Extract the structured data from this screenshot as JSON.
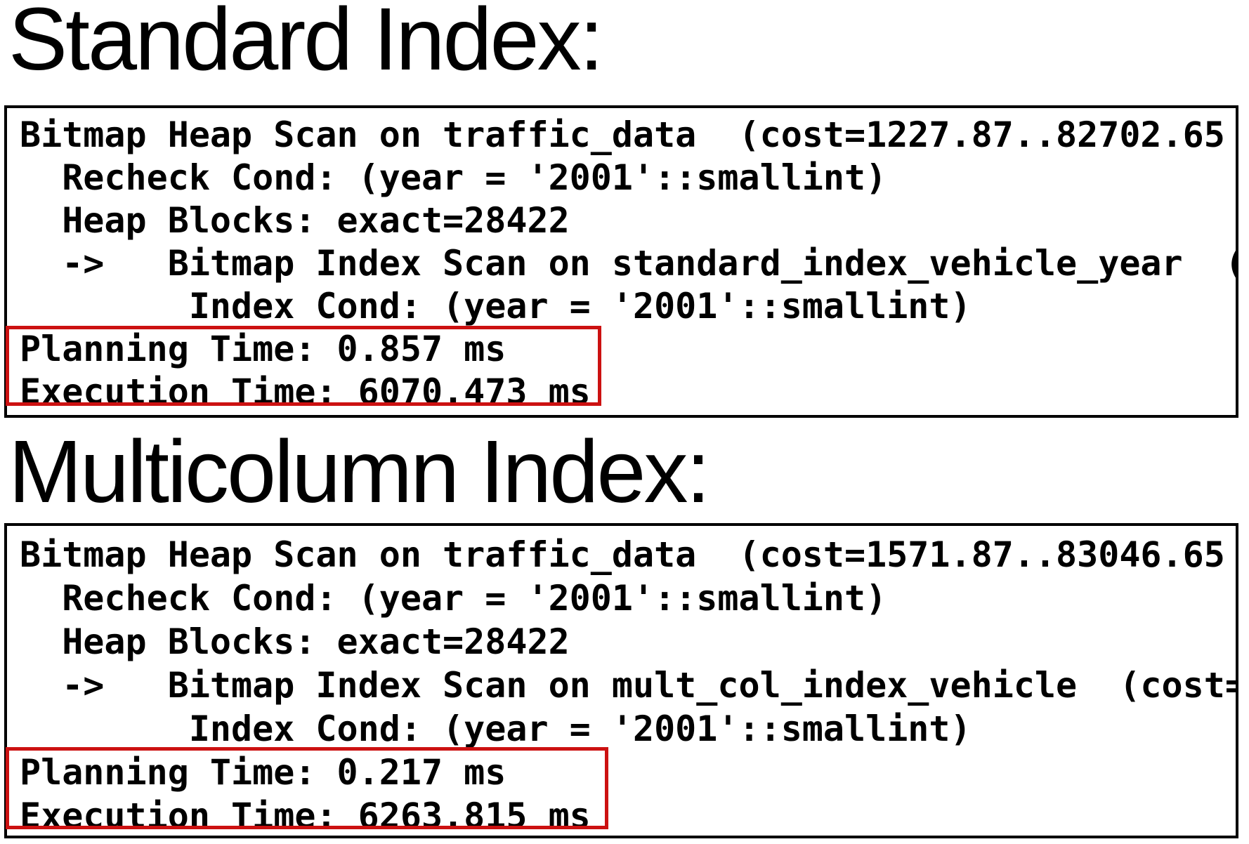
{
  "colors": {
    "background": "#ffffff",
    "text": "#000000",
    "code_border": "#000000",
    "highlight_red": "#cc1111"
  },
  "sections": [
    {
      "heading": "Standard Index:",
      "code_lines": [
        "Bitmap Heap Scan on traffic_data  (cost=1227.87..82702.65",
        "  Recheck Cond: (year = '2001'::smallint)",
        "  Heap Blocks: exact=28422",
        "  ->   Bitmap Index Scan on standard_index_vehicle_year  (",
        "        Index Cond: (year = '2001'::smallint)",
        "Planning Time: 0.857 ms",
        "Execution Time: 6070.473 ms"
      ],
      "highlighted_line_indexes": [
        5,
        6
      ],
      "metrics": {
        "planning_time": "0.857 ms",
        "execution_time": "6070.473 ms"
      }
    },
    {
      "heading": "Multicolumn Index:",
      "code_lines": [
        "Bitmap Heap Scan on traffic_data  (cost=1571.87..83046.65",
        "  Recheck Cond: (year = '2001'::smallint)",
        "  Heap Blocks: exact=28422",
        "  ->   Bitmap Index Scan on mult_col_index_vehicle  (cost=",
        "        Index Cond: (year = '2001'::smallint)",
        "Planning Time: 0.217 ms",
        "Execution Time: 6263.815 ms"
      ],
      "highlighted_line_indexes": [
        5,
        6
      ],
      "metrics": {
        "planning_time": "0.217 ms",
        "execution_time": "6263.815 ms"
      }
    }
  ]
}
